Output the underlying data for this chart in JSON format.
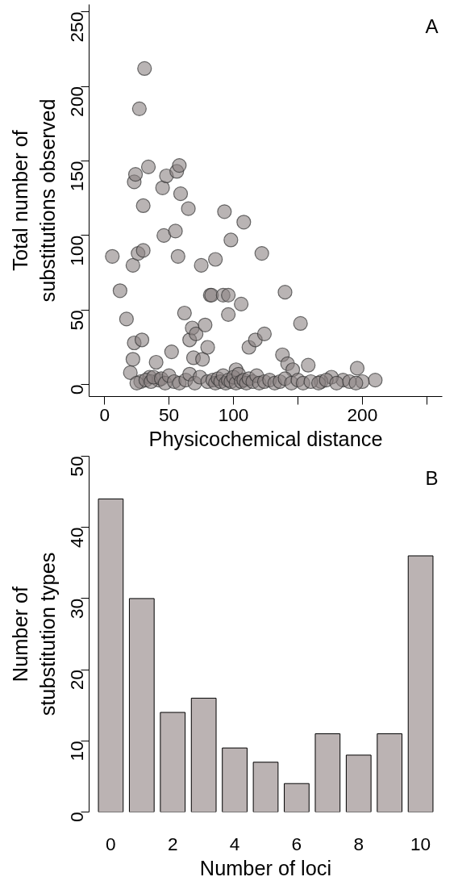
{
  "chart_data": [
    {
      "type": "scatter",
      "annotations": [
        "A"
      ],
      "xlabel": "Physicochemical distance",
      "ylabel": "Total number of\nsubstitutions observed",
      "xlim": [
        -12,
        262
      ],
      "ylim": [
        -8,
        255
      ],
      "xticks": [
        0,
        50,
        100,
        {
          "value": 150,
          "label": null
        },
        200,
        {
          "value": 250,
          "label": null
        }
      ],
      "yticks": [
        0,
        50,
        100,
        150,
        200,
        250
      ],
      "grid": false,
      "marker": "circle",
      "series": [
        {
          "color": "#8a8282",
          "x": [
            6,
            12,
            17,
            22,
            22,
            23,
            23,
            24,
            26,
            27,
            29,
            30,
            30,
            31,
            34,
            28,
            35,
            40,
            42,
            45,
            46,
            48,
            52,
            55,
            56,
            57,
            58,
            59,
            62,
            65,
            66,
            68,
            69,
            71,
            75,
            76,
            78,
            80,
            82,
            83,
            86,
            92,
            93,
            96,
            96,
            98,
            102,
            106,
            108,
            112,
            117,
            122,
            124,
            138,
            140,
            142,
            146,
            152,
            158,
            196,
            210,
            200,
            185,
            176,
            168,
            20,
            25,
            32,
            36,
            38,
            44,
            47,
            50,
            54,
            58,
            63,
            66,
            70,
            74,
            80,
            84,
            86,
            88,
            90,
            92,
            94,
            96,
            98,
            100,
            102,
            104,
            106,
            108,
            110,
            112,
            115,
            118,
            120,
            124,
            128,
            132,
            136,
            140,
            145,
            150,
            154,
            160,
            166,
            172,
            180,
            190,
            195
          ],
          "values": [
            86,
            63,
            44,
            80,
            17,
            28,
            136,
            141,
            88,
            185,
            30,
            120,
            90,
            212,
            146,
            2,
            5,
            15,
            3,
            132,
            100,
            140,
            22,
            103,
            143,
            86,
            147,
            128,
            48,
            118,
            30,
            38,
            18,
            34,
            80,
            17,
            40,
            25,
            60,
            60,
            84,
            60,
            116,
            60,
            47,
            97,
            10,
            54,
            109,
            25,
            30,
            88,
            34,
            20,
            62,
            14,
            10,
            41,
            13,
            11,
            3,
            2,
            3,
            5,
            2,
            8,
            1,
            3,
            2,
            5,
            4,
            1,
            6,
            2,
            1,
            3,
            7,
            1,
            5,
            2,
            3,
            1,
            4,
            2,
            6,
            1,
            3,
            2,
            5,
            1,
            7,
            2,
            3,
            1,
            4,
            2,
            6,
            1,
            2,
            3,
            1,
            2,
            4,
            1,
            3,
            1,
            2,
            1,
            3,
            1,
            2,
            1
          ]
        }
      ]
    },
    {
      "type": "bar",
      "annotations": [
        "B"
      ],
      "xlabel": "Number of loci",
      "ylabel": "Number of\nstubstitution types",
      "categories": [
        "0",
        null,
        "2",
        null,
        "4",
        null,
        "6",
        null,
        "8",
        null,
        "10"
      ],
      "values": [
        44,
        30,
        14,
        16,
        9,
        7,
        4,
        11,
        8,
        11,
        36
      ],
      "color": "#bbb3b3",
      "ylim": [
        0,
        50
      ],
      "yticks": [
        0,
        10,
        20,
        30,
        40,
        50
      ],
      "grid": false
    }
  ]
}
